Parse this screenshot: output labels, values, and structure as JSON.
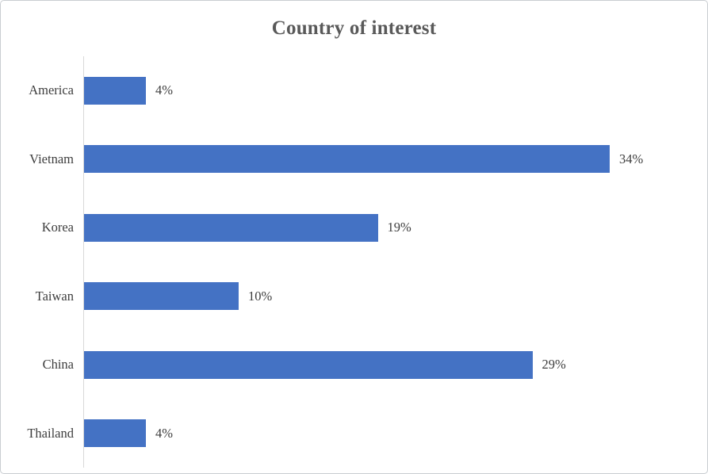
{
  "title": "Country of interest",
  "chart_data": {
    "type": "bar",
    "orientation": "horizontal",
    "title": "Country of interest",
    "categories": [
      "America",
      "Vietnam",
      "Korea",
      "Taiwan",
      "China",
      "Thailand"
    ],
    "values": [
      4,
      34,
      19,
      10,
      29,
      4
    ],
    "value_labels": [
      "4%",
      "34%",
      "19%",
      "10%",
      "29%",
      "4%"
    ],
    "xlabel": "",
    "ylabel": "",
    "xlim": [
      0,
      40
    ],
    "grid": false,
    "legend": false,
    "data_labels_position": "outside-end",
    "bar_color": "#4472C4",
    "axis_line_color": "#d9d9d9",
    "title_color": "#595959",
    "label_color": "#3d3d3d"
  }
}
